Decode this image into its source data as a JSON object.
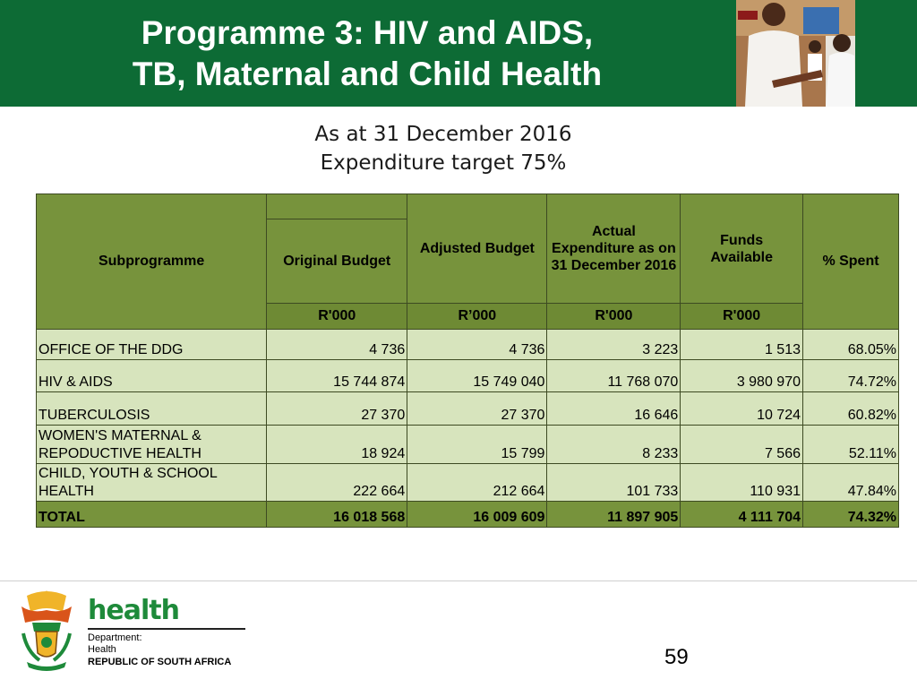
{
  "header": {
    "title_line1": "Programme 3:  HIV and AIDS,",
    "title_line2": "TB,  Maternal and Child Health"
  },
  "subtitle": {
    "line1": "As at 31 December 2016",
    "line2": "Expenditure target 75%"
  },
  "table": {
    "headers": {
      "subprogramme": "Subprogramme",
      "original_budget": "Original Budget",
      "adjusted_budget": "Adjusted Budget",
      "actual_expenditure": "Actual Expenditure as on 31 December 2016",
      "funds_available": "Funds Available",
      "percent_spent": "% Spent"
    },
    "units": [
      "R'000",
      "R’000",
      "R'000",
      "R'000"
    ],
    "rows": [
      {
        "label": "OFFICE OF THE DDG",
        "original": "4 736",
        "adjusted": "4 736",
        "actual": "3 223",
        "funds": "1 513",
        "spent": "68.05%"
      },
      {
        "label": "HIV & AIDS",
        "original": "15 744 874",
        "adjusted": "15 749 040",
        "actual": "11 768 070",
        "funds": "3 980 970",
        "spent": "74.72%"
      },
      {
        "label": "TUBERCULOSIS",
        "original": "27 370",
        "adjusted": "27 370",
        "actual": "16 646",
        "funds": "10 724",
        "spent": "60.82%"
      },
      {
        "label": "WOMEN'S MATERNAL & REPODUCTIVE HEALTH",
        "original": "18 924",
        "adjusted": "15 799",
        "actual": "8 233",
        "funds": "7 566",
        "spent": "52.11%"
      },
      {
        "label": "CHILD, YOUTH & SCHOOL HEALTH",
        "original": "222 664",
        "adjusted": "212 664",
        "actual": "101 733",
        "funds": "110 931",
        "spent": "47.84%"
      }
    ],
    "total": {
      "label": "TOTAL",
      "original": "16 018 568",
      "adjusted": "16 009 609",
      "actual": "11 897 905",
      "funds": "4 111 704",
      "spent": "74.32%"
    }
  },
  "footer": {
    "logo_word": "health",
    "department_line1": "Department:",
    "department_line2": "Health",
    "country": "REPUBLIC OF SOUTH AFRICA",
    "page_number": "59"
  },
  "colors": {
    "header_green": "#0d6b35",
    "table_header": "#77933c",
    "table_body": "#d7e4bd",
    "logo_green": "#1e8a3a"
  },
  "icons": {
    "photo": "nurse-with-children-photo",
    "crest": "south-africa-coat-of-arms-icon"
  }
}
